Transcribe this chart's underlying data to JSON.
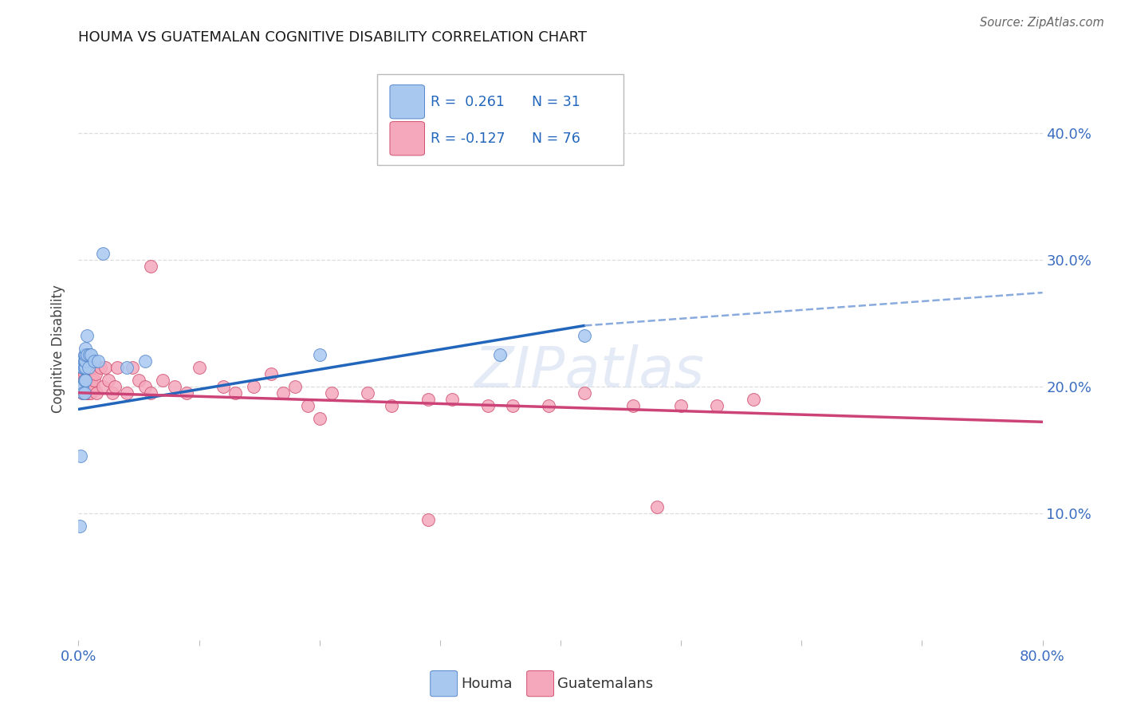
{
  "title": "HOUMA VS GUATEMALAN COGNITIVE DISABILITY CORRELATION CHART",
  "source": "Source: ZipAtlas.com",
  "ylabel": "Cognitive Disability",
  "legend_label1": "Houma",
  "legend_label2": "Guatemalans",
  "legend_R1": "0.261",
  "legend_N1": "31",
  "legend_R2": "-0.127",
  "legend_N2": "76",
  "houma_color": "#A8C8F0",
  "houma_edge_color": "#5588CC",
  "guatemalan_color": "#F5A8BC",
  "guatemalan_edge_color": "#D05070",
  "houma_line_color": "#2266BB",
  "houma_dash_color": "#88AADD",
  "guatemalan_line_color": "#CC4477",
  "houma_x": [
    0.001,
    0.002,
    0.002,
    0.003,
    0.003,
    0.003,
    0.004,
    0.004,
    0.005,
    0.005,
    0.005,
    0.005,
    0.005,
    0.006,
    0.006,
    0.006,
    0.006,
    0.006,
    0.007,
    0.007,
    0.008,
    0.009,
    0.01,
    0.013,
    0.016,
    0.02,
    0.04,
    0.055,
    0.2,
    0.35,
    0.42
  ],
  "houma_y": [
    0.09,
    0.145,
    0.2,
    0.2,
    0.215,
    0.22,
    0.195,
    0.215,
    0.195,
    0.205,
    0.215,
    0.22,
    0.225,
    0.205,
    0.215,
    0.22,
    0.225,
    0.23,
    0.225,
    0.24,
    0.215,
    0.225,
    0.225,
    0.22,
    0.22,
    0.305,
    0.215,
    0.22,
    0.225,
    0.225,
    0.24
  ],
  "guatemalan_x": [
    0.001,
    0.001,
    0.002,
    0.002,
    0.003,
    0.003,
    0.003,
    0.004,
    0.004,
    0.004,
    0.004,
    0.005,
    0.005,
    0.005,
    0.005,
    0.005,
    0.006,
    0.006,
    0.006,
    0.006,
    0.007,
    0.007,
    0.007,
    0.007,
    0.008,
    0.008,
    0.008,
    0.009,
    0.009,
    0.01,
    0.01,
    0.011,
    0.012,
    0.013,
    0.014,
    0.015,
    0.018,
    0.02,
    0.022,
    0.025,
    0.028,
    0.03,
    0.032,
    0.04,
    0.045,
    0.05,
    0.055,
    0.06,
    0.07,
    0.08,
    0.09,
    0.1,
    0.12,
    0.13,
    0.145,
    0.16,
    0.17,
    0.18,
    0.19,
    0.21,
    0.24,
    0.26,
    0.29,
    0.31,
    0.34,
    0.36,
    0.39,
    0.42,
    0.46,
    0.5,
    0.53,
    0.56,
    0.29,
    0.48,
    0.06,
    0.2
  ],
  "guatemalan_y": [
    0.21,
    0.215,
    0.205,
    0.215,
    0.195,
    0.205,
    0.215,
    0.2,
    0.205,
    0.21,
    0.215,
    0.195,
    0.2,
    0.205,
    0.21,
    0.215,
    0.195,
    0.2,
    0.205,
    0.215,
    0.195,
    0.2,
    0.205,
    0.22,
    0.195,
    0.205,
    0.21,
    0.2,
    0.215,
    0.195,
    0.205,
    0.215,
    0.2,
    0.205,
    0.21,
    0.195,
    0.215,
    0.2,
    0.215,
    0.205,
    0.195,
    0.2,
    0.215,
    0.195,
    0.215,
    0.205,
    0.2,
    0.195,
    0.205,
    0.2,
    0.195,
    0.215,
    0.2,
    0.195,
    0.2,
    0.21,
    0.195,
    0.2,
    0.185,
    0.195,
    0.195,
    0.185,
    0.19,
    0.19,
    0.185,
    0.185,
    0.185,
    0.195,
    0.185,
    0.185,
    0.185,
    0.19,
    0.095,
    0.105,
    0.295,
    0.175
  ],
  "houma_line_x0": 0.0,
  "houma_line_x_solid_end": 0.42,
  "houma_line_x_dash_end": 0.8,
  "houma_line_y0": 0.182,
  "houma_line_y_solid_end": 0.248,
  "houma_line_y_dash_end": 0.274,
  "guatemalan_line_x0": 0.0,
  "guatemalan_line_x_end": 0.8,
  "guatemalan_line_y0": 0.195,
  "guatemalan_line_y_end": 0.172,
  "xlim": [
    0.0,
    0.8
  ],
  "ylim": [
    0.0,
    0.46
  ],
  "yticks": [
    0.1,
    0.2,
    0.3,
    0.4
  ],
  "ytick_labels": [
    "10.0%",
    "20.0%",
    "30.0%",
    "40.0%"
  ],
  "bg_color": "#FFFFFF",
  "grid_color": "#DDDDDD",
  "watermark_text": "ZIPatlas",
  "watermark_color": "#D0DCF0"
}
